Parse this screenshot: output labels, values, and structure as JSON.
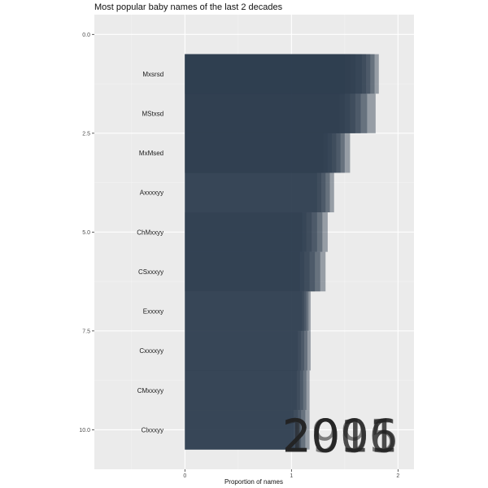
{
  "chart_data": {
    "type": "bar",
    "orientation": "horizontal",
    "title": "Most popular baby names of the last 2 decades",
    "xlabel": "Proportion of names",
    "ylabel": "",
    "xlim": [
      -0.85,
      2.15
    ],
    "ylim": [
      -0.5,
      11.0
    ],
    "x_ticks": [
      0,
      1,
      2
    ],
    "y_ticks": [
      "0.0",
      "2.5",
      "5.0",
      "7.5",
      "10.0"
    ],
    "y_tick_values": [
      0.0,
      2.5,
      5.0,
      7.5,
      10.0
    ],
    "grid": true,
    "bar_color": "#2e3e50",
    "panel_color": "#ebebeb",
    "rank_labels": [
      "Mxsrsd",
      "MStxsd",
      "MxMsed",
      "Axxxxyy",
      "ChMxxyy",
      "CSxxxyy",
      "Exxxxy",
      "Cxxxxyy",
      "CMxxxyy",
      "Clxxxyy"
    ],
    "bars": [
      {
        "rank": 1,
        "values": [
          1.82,
          1.78,
          1.74,
          1.7,
          1.66,
          1.6,
          1.55,
          1.5
        ]
      },
      {
        "rank": 2,
        "values": [
          1.79,
          1.71,
          1.65,
          1.6,
          1.55,
          1.5,
          1.45
        ]
      },
      {
        "rank": 3,
        "values": [
          1.55,
          1.5,
          1.46,
          1.42,
          1.38,
          1.34,
          1.3
        ]
      },
      {
        "rank": 4,
        "values": [
          1.4,
          1.36,
          1.32,
          1.28,
          1.24
        ]
      },
      {
        "rank": 5,
        "values": [
          1.34,
          1.29,
          1.24,
          1.19,
          1.14,
          1.1
        ]
      },
      {
        "rank": 6,
        "values": [
          1.32,
          1.27,
          1.22,
          1.17,
          1.12,
          1.08
        ]
      },
      {
        "rank": 7,
        "values": [
          1.18,
          1.16,
          1.14,
          1.12,
          1.1
        ]
      },
      {
        "rank": 8,
        "values": [
          1.18,
          1.15,
          1.12,
          1.09,
          1.06
        ]
      },
      {
        "rank": 9,
        "values": [
          1.17,
          1.14,
          1.11,
          1.08,
          1.05
        ]
      },
      {
        "rank": 10,
        "values": [
          1.17,
          1.13,
          1.09,
          1.06,
          1.02
        ]
      }
    ],
    "year_labels": [
      "2005",
      "2001",
      "1996",
      "2016",
      "2011"
    ]
  }
}
